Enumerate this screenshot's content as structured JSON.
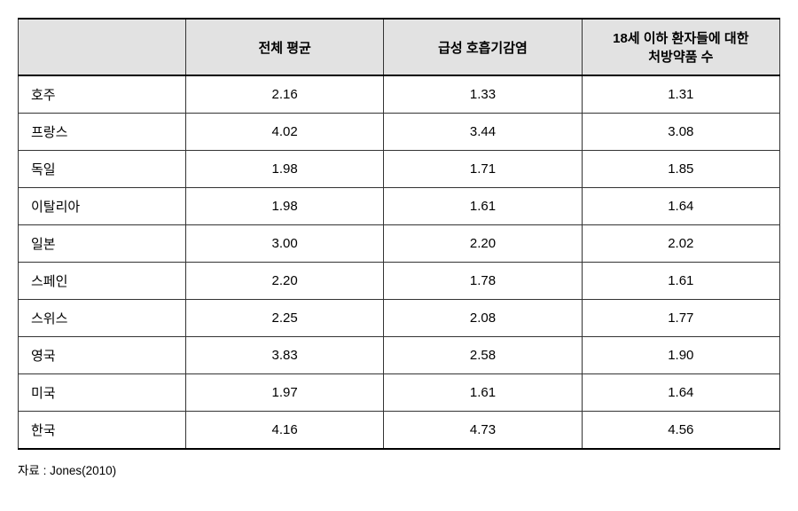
{
  "table": {
    "columns": [
      "",
      "전체 평균",
      "급성 호흡기감염",
      "18세 이하 환자들에 대한\n처방약품 수"
    ],
    "rows": [
      [
        "호주",
        "2.16",
        "1.33",
        "1.31"
      ],
      [
        "프랑스",
        "4.02",
        "3.44",
        "3.08"
      ],
      [
        "독일",
        "1.98",
        "1.71",
        "1.85"
      ],
      [
        "이탈리아",
        "1.98",
        "1.61",
        "1.64"
      ],
      [
        "일본",
        "3.00",
        "2.20",
        "2.02"
      ],
      [
        "스페인",
        "2.20",
        "1.78",
        "1.61"
      ],
      [
        "스위스",
        "2.25",
        "2.08",
        "1.77"
      ],
      [
        "영국",
        "3.83",
        "2.58",
        "1.90"
      ],
      [
        "미국",
        "1.97",
        "1.61",
        "1.64"
      ],
      [
        "한국",
        "4.16",
        "4.73",
        "4.56"
      ]
    ],
    "header_bg": "#e2e2e2",
    "border_color": "#333333",
    "outer_border_color": "#000000",
    "font_size_body": 15,
    "font_size_source": 13.5
  },
  "source": "자료 : Jones(2010)"
}
